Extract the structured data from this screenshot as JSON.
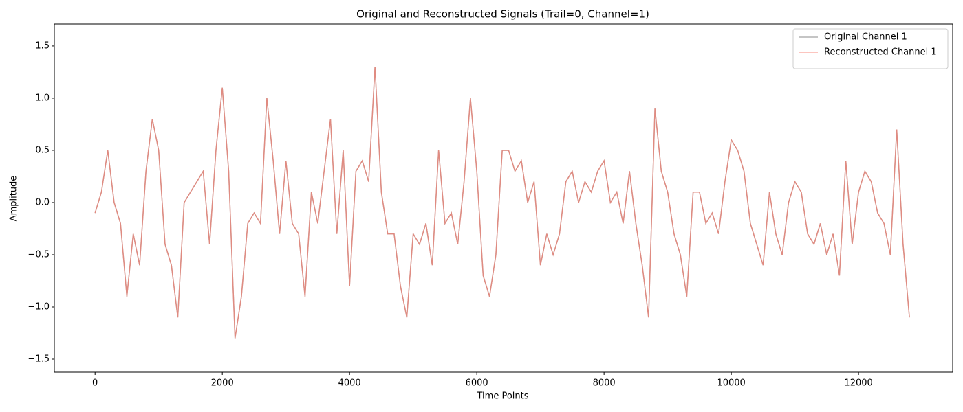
{
  "chart_data": {
    "type": "line",
    "title": "Original and Reconstructed Signals (Trail=0, Channel=1)",
    "x_label": "Time Points",
    "y_label": "Amplitude",
    "x": [
      0,
      100,
      200,
      300,
      400,
      500,
      600,
      700,
      800,
      900,
      1000,
      1100,
      1200,
      1300,
      1400,
      1500,
      1600,
      1700,
      1800,
      1900,
      2000,
      2100,
      2200,
      2300,
      2400,
      2500,
      2600,
      2700,
      2800,
      2900,
      3000,
      3100,
      3200,
      3300,
      3400,
      3500,
      3600,
      3700,
      3800,
      3900,
      4000,
      4100,
      4200,
      4300,
      4400,
      4500,
      4600,
      4700,
      4800,
      4900,
      5000,
      5100,
      5200,
      5300,
      5400,
      5500,
      5600,
      5700,
      5800,
      5900,
      6000,
      6100,
      6200,
      6300,
      6400,
      6500,
      6600,
      6700,
      6800,
      6900,
      7000,
      7100,
      7200,
      7300,
      7400,
      7500,
      7600,
      7700,
      7800,
      7900,
      8000,
      8100,
      8200,
      8300,
      8400,
      8500,
      8600,
      8700,
      8800,
      8900,
      9000,
      9100,
      9200,
      9300,
      9400,
      9500,
      9600,
      9700,
      9800,
      9900,
      10000,
      10100,
      10200,
      10300,
      10400,
      10500,
      10600,
      10700,
      10800,
      10900,
      11000,
      11100,
      11200,
      11300,
      11400,
      11500,
      11600,
      11700,
      11800,
      11900,
      12000,
      12100,
      12200,
      12300,
      12400,
      12500,
      12600,
      12700,
      12800
    ],
    "series": [
      {
        "name": "Original Channel 1",
        "color": "#7f7f7f",
        "values": [
          -0.1,
          0.1,
          0.5,
          0.0,
          -0.2,
          -0.9,
          -0.3,
          -0.6,
          0.3,
          0.8,
          0.5,
          -0.4,
          -0.6,
          -1.1,
          0.0,
          0.1,
          0.2,
          0.3,
          -0.4,
          0.5,
          1.1,
          0.3,
          -1.3,
          -0.9,
          -0.2,
          -0.1,
          -0.2,
          1.0,
          0.4,
          -0.3,
          0.4,
          -0.2,
          -0.3,
          -0.9,
          0.1,
          -0.2,
          0.3,
          0.8,
          -0.3,
          0.5,
          -0.8,
          0.3,
          0.4,
          0.2,
          1.3,
          0.1,
          -0.3,
          -0.3,
          -0.8,
          -1.1,
          -0.3,
          -0.4,
          -0.2,
          -0.6,
          0.5,
          -0.2,
          -0.1,
          -0.4,
          0.2,
          1.0,
          0.3,
          -0.7,
          -0.9,
          -0.5,
          0.5,
          0.5,
          0.3,
          0.4,
          0.0,
          0.2,
          -0.6,
          -0.3,
          -0.5,
          -0.3,
          0.2,
          0.3,
          0.0,
          0.2,
          0.1,
          0.3,
          0.4,
          0.0,
          0.1,
          -0.2,
          0.3,
          -0.2,
          -0.6,
          -1.1,
          0.9,
          0.3,
          0.1,
          -0.3,
          -0.5,
          -0.9,
          0.1,
          0.1,
          -0.2,
          -0.1,
          -0.3,
          0.2,
          0.6,
          0.5,
          0.3,
          -0.2,
          -0.4,
          -0.6,
          0.1,
          -0.3,
          -0.5,
          0.0,
          0.2,
          0.1,
          -0.3,
          -0.4,
          -0.2,
          -0.5,
          -0.3,
          -0.7,
          0.4,
          -0.4,
          0.1,
          0.3,
          0.2,
          -0.1,
          -0.2,
          -0.5,
          0.7,
          -0.4,
          -1.1
        ]
      },
      {
        "name": "Reconstructed Channel 1",
        "color": "#fa8072",
        "values": [
          -0.1,
          0.1,
          0.5,
          0.0,
          -0.2,
          -0.9,
          -0.3,
          -0.6,
          0.3,
          0.8,
          0.5,
          -0.4,
          -0.6,
          -1.1,
          0.0,
          0.1,
          0.2,
          0.3,
          -0.4,
          0.5,
          1.1,
          0.3,
          -1.3,
          -0.9,
          -0.2,
          -0.1,
          -0.2,
          1.0,
          0.4,
          -0.3,
          0.4,
          -0.2,
          -0.3,
          -0.9,
          0.1,
          -0.2,
          0.3,
          0.8,
          -0.3,
          0.5,
          -0.8,
          0.3,
          0.4,
          0.2,
          1.3,
          0.1,
          -0.3,
          -0.3,
          -0.8,
          -1.1,
          -0.3,
          -0.4,
          -0.2,
          -0.6,
          0.5,
          -0.2,
          -0.1,
          -0.4,
          0.2,
          1.0,
          0.3,
          -0.7,
          -0.9,
          -0.5,
          0.5,
          0.5,
          0.3,
          0.4,
          0.0,
          0.2,
          -0.6,
          -0.3,
          -0.5,
          -0.3,
          0.2,
          0.3,
          0.0,
          0.2,
          0.1,
          0.3,
          0.4,
          0.0,
          0.1,
          -0.2,
          0.3,
          -0.2,
          -0.6,
          -1.1,
          0.9,
          0.3,
          0.1,
          -0.3,
          -0.5,
          -0.9,
          0.1,
          0.1,
          -0.2,
          -0.1,
          -0.3,
          0.2,
          0.6,
          0.5,
          0.3,
          -0.2,
          -0.4,
          -0.6,
          0.1,
          -0.3,
          -0.5,
          0.0,
          0.2,
          0.1,
          -0.3,
          -0.4,
          -0.2,
          -0.5,
          -0.3,
          -0.7,
          0.4,
          -0.4,
          0.1,
          0.3,
          0.2,
          -0.1,
          -0.2,
          -0.5,
          0.7,
          -0.4,
          -1.1
        ]
      }
    ],
    "xlim": [
      -640,
      13480
    ],
    "ylim": [
      -1.625,
      1.71
    ],
    "xticks": [
      0,
      2000,
      4000,
      6000,
      8000,
      10000,
      12000
    ],
    "yticks": [
      {
        "value": -1.5,
        "label": "−1.5"
      },
      {
        "value": -1.0,
        "label": "−1.0"
      },
      {
        "value": -0.5,
        "label": "−0.5"
      },
      {
        "value": 0.0,
        "label": "0.0"
      },
      0.5,
      {
        "value": 1.0,
        "label": "1.0"
      },
      1.5
    ],
    "grid": false,
    "legend": "upper right"
  }
}
